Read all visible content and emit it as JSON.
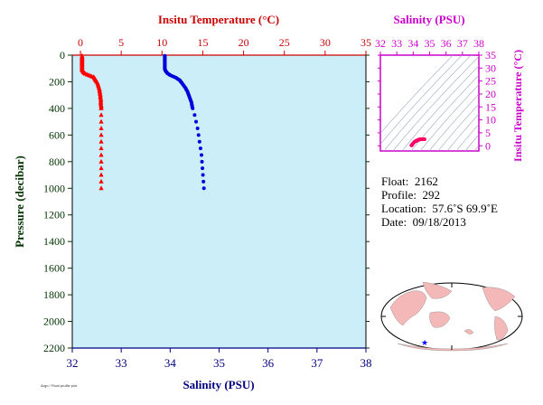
{
  "chart_data": [
    {
      "type": "scatter",
      "xlabel_top": "Insitu Temperature (°C)",
      "xlabel_bottom": "Salinity (PSU)",
      "ylabel": "Pressure (decibar)",
      "x_top_lim": [
        -1,
        35
      ],
      "x_top_ticks": [
        0,
        5,
        10,
        15,
        20,
        25,
        30,
        35
      ],
      "x_bottom_lim": [
        32,
        38
      ],
      "x_bottom_ticks": [
        32,
        33,
        34,
        35,
        36,
        37,
        38
      ],
      "ylim": [
        0,
        2200
      ],
      "y_ticks": [
        0,
        200,
        400,
        600,
        800,
        1000,
        1200,
        1400,
        1600,
        1800,
        2000,
        2200
      ],
      "y_inverted": true,
      "series": [
        {
          "axis": "temperature",
          "color": "#ff0000",
          "marker": "triangle",
          "pressure": [
            5,
            10,
            15,
            20,
            25,
            30,
            35,
            40,
            45,
            50,
            55,
            60,
            65,
            70,
            75,
            80,
            85,
            90,
            95,
            100,
            105,
            110,
            115,
            120,
            125,
            130,
            135,
            140,
            145,
            150,
            155,
            160,
            165,
            170,
            175,
            180,
            185,
            190,
            195,
            200,
            210,
            220,
            230,
            240,
            250,
            260,
            270,
            280,
            290,
            300,
            310,
            320,
            330,
            340,
            350,
            360,
            370,
            380,
            390,
            400,
            450,
            500,
            550,
            600,
            650,
            700,
            750,
            800,
            850,
            900,
            950,
            1000
          ],
          "values": [
            0.2,
            0.2,
            0.2,
            0.2,
            0.2,
            0.2,
            0.2,
            0.2,
            0.2,
            0.2,
            0.2,
            0.2,
            0.2,
            0.2,
            0.2,
            0.2,
            0.2,
            0.2,
            0.2,
            0.2,
            0.2,
            0.2,
            0.25,
            0.3,
            0.35,
            0.4,
            0.5,
            0.6,
            0.8,
            1.0,
            1.2,
            1.4,
            1.6,
            1.7,
            1.75,
            1.8,
            1.85,
            1.9,
            1.95,
            2.0,
            2.1,
            2.15,
            2.2,
            2.25,
            2.3,
            2.35,
            2.35,
            2.4,
            2.4,
            2.45,
            2.45,
            2.45,
            2.5,
            2.5,
            2.5,
            2.5,
            2.5,
            2.55,
            2.55,
            2.55,
            2.55,
            2.55,
            2.55,
            2.55,
            2.55,
            2.55,
            2.55,
            2.55,
            2.55,
            2.55,
            2.55,
            2.55
          ]
        },
        {
          "axis": "salinity",
          "color": "#0000dd",
          "marker": "circle",
          "pressure": [
            5,
            10,
            15,
            20,
            25,
            30,
            35,
            40,
            45,
            50,
            55,
            60,
            65,
            70,
            75,
            80,
            85,
            90,
            95,
            100,
            105,
            110,
            115,
            120,
            125,
            130,
            135,
            140,
            145,
            150,
            155,
            160,
            165,
            170,
            175,
            180,
            185,
            190,
            195,
            200,
            210,
            220,
            230,
            240,
            250,
            260,
            270,
            280,
            290,
            300,
            310,
            320,
            330,
            340,
            350,
            360,
            370,
            380,
            390,
            400,
            450,
            500,
            550,
            600,
            650,
            700,
            750,
            800,
            850,
            900,
            950,
            1000
          ],
          "values": [
            33.89,
            33.89,
            33.89,
            33.89,
            33.89,
            33.89,
            33.89,
            33.89,
            33.89,
            33.89,
            33.89,
            33.89,
            33.89,
            33.89,
            33.89,
            33.89,
            33.89,
            33.89,
            33.89,
            33.89,
            33.89,
            33.9,
            33.9,
            33.91,
            33.92,
            33.93,
            33.94,
            33.96,
            33.98,
            34.0,
            34.03,
            34.06,
            34.09,
            34.12,
            34.14,
            34.16,
            34.18,
            34.2,
            34.21,
            34.22,
            34.24,
            34.26,
            34.28,
            34.3,
            34.32,
            34.33,
            34.35,
            34.36,
            34.37,
            34.38,
            34.39,
            34.4,
            34.41,
            34.42,
            34.43,
            34.44,
            34.44,
            34.45,
            34.45,
            34.46,
            34.5,
            34.53,
            34.56,
            34.58,
            34.6,
            34.62,
            34.64,
            34.65,
            34.66,
            34.67,
            34.68,
            34.69
          ]
        }
      ]
    },
    {
      "type": "scatter",
      "xlabel": "Salinity (PSU)",
      "ylabel": "Insitu Temperature (°C)",
      "xlim": [
        32,
        38
      ],
      "x_ticks": [
        32,
        33,
        34,
        35,
        36,
        37,
        38
      ],
      "ylim": [
        -2,
        35
      ],
      "y_ticks": [
        0,
        5,
        10,
        15,
        20,
        25,
        30,
        35
      ],
      "color": "#ff0066",
      "points_x": [
        33.89,
        33.9,
        33.92,
        33.95,
        34.0,
        34.06,
        34.12,
        34.16,
        34.2,
        34.22,
        34.26,
        34.3,
        34.33,
        34.36,
        34.38,
        34.4,
        34.42,
        34.44,
        34.46,
        34.5,
        34.55,
        34.6,
        34.65,
        34.69
      ],
      "points_y": [
        0.2,
        0.2,
        0.3,
        0.5,
        1.0,
        1.4,
        1.7,
        1.8,
        1.9,
        2.0,
        2.15,
        2.25,
        2.35,
        2.4,
        2.45,
        2.45,
        2.5,
        2.5,
        2.55,
        2.55,
        2.55,
        2.55,
        2.55,
        2.55
      ]
    }
  ],
  "info": {
    "float_label": "Float:",
    "float_value": "2162",
    "profile_label": "Profile:",
    "profile_value": "292",
    "location_label": "Location:",
    "location_value": "57.6˚S  69.9˚E",
    "date_label": "Date:",
    "date_value": "09/18/2013"
  },
  "map": {
    "marker_color": "#0000ff",
    "land_color": "#f4b8b8",
    "ocean_color": "#ffffff"
  },
  "colors": {
    "plot_bg": "#cceef8",
    "temperature_axis": "#cc0000",
    "salinity_axis": "#000080",
    "pressure_axis": "#003300",
    "ts_axis": "#cc00cc"
  },
  "credit": "Argo / Float profile plot"
}
